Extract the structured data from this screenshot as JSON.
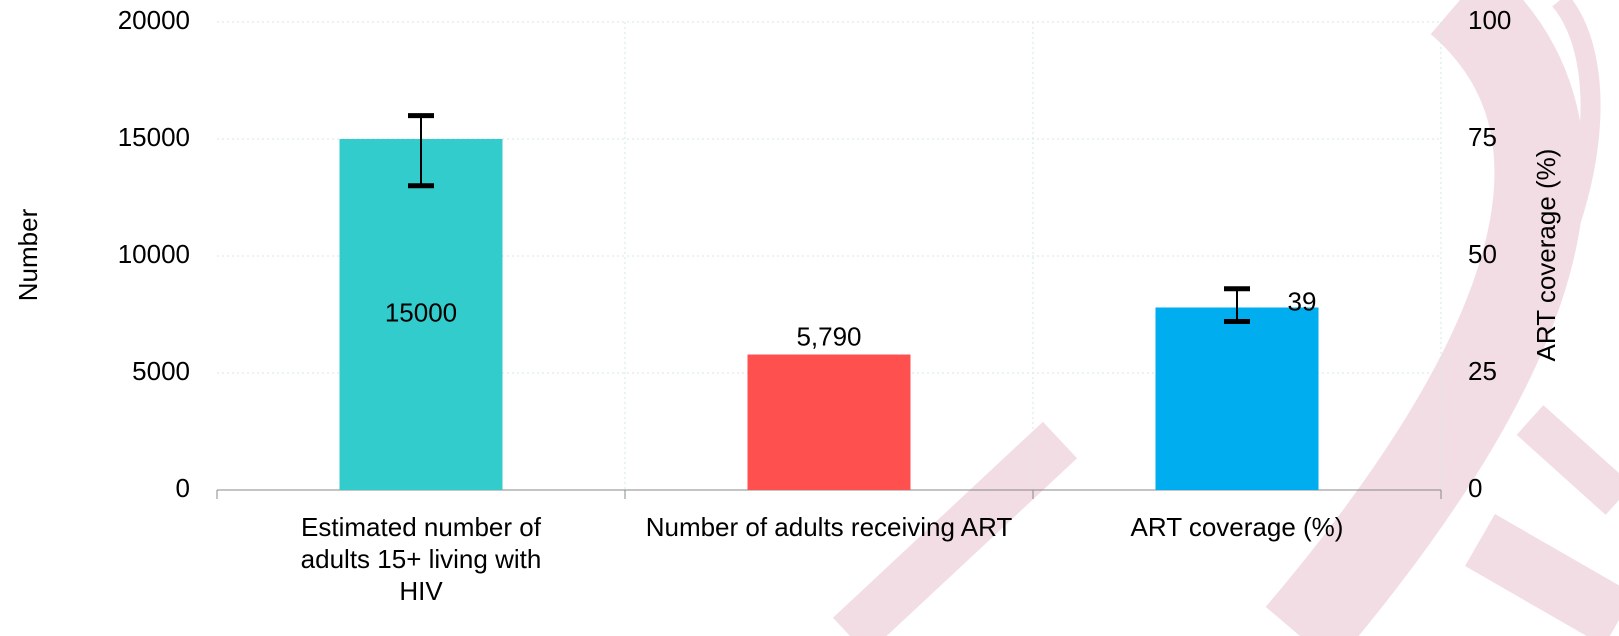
{
  "chart_data": {
    "type": "bar",
    "y_label": "Number",
    "y2_label": "ART coverage (%)",
    "categories": [
      "Estimated number of adults 15+ living with HIV",
      "Number of adults receiving ART",
      "ART coverage (%)"
    ],
    "values": [
      15000,
      5790,
      39
    ],
    "value_labels": [
      "15000",
      "5,790",
      "39"
    ],
    "axes": [
      "y",
      "y",
      "y2"
    ],
    "colors": [
      "#33cccc",
      "#ff5050",
      "#00aeef"
    ],
    "errors": [
      [
        13000,
        16000
      ],
      null,
      [
        36,
        43
      ]
    ],
    "ylim": [
      0,
      20000
    ],
    "yticks": [
      0,
      5000,
      10000,
      15000,
      20000
    ],
    "y2lim": [
      0,
      100
    ],
    "y2ticks": [
      0,
      25,
      50,
      75,
      100
    ],
    "grid": true
  }
}
